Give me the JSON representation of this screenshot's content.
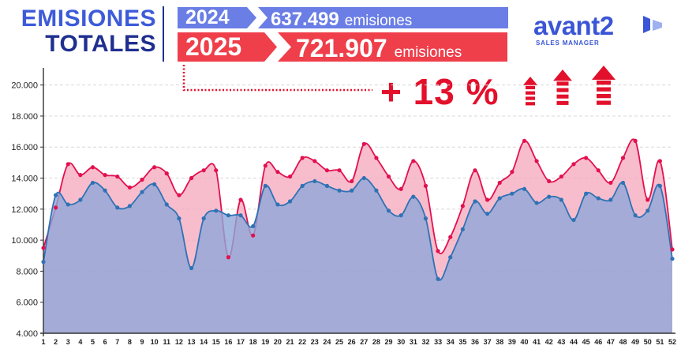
{
  "header": {
    "title_line1": "EMISIONES",
    "title_line2": "TOTALES"
  },
  "banner_2024": {
    "year": "2024",
    "value": "637.499",
    "unit": "emisiones",
    "color": "#6a7ee6"
  },
  "banner_2025": {
    "year": "2025",
    "value": "721.907",
    "unit": "emisiones",
    "color": "#ef3f4b"
  },
  "logo": {
    "word": "avant2",
    "tagline": "SALES MANAGER",
    "color": "#3a55d6"
  },
  "change": {
    "label": "+ 13 %",
    "direction": "up",
    "arrow_icons": [
      "up-arrow-icon",
      "up-arrow-icon",
      "up-arrow-icon"
    ],
    "color": "#e3102b"
  },
  "chart_data": {
    "type": "area",
    "ylim": [
      4000,
      21000
    ],
    "yticks": [
      "4.000",
      "6.000",
      "8.000",
      "10.000",
      "12.000",
      "14.000",
      "16.000",
      "18.000",
      "20.000"
    ],
    "ytick_values": [
      4000,
      6000,
      8000,
      10000,
      12000,
      14000,
      16000,
      18000,
      20000
    ],
    "x": [
      "1",
      "2",
      "3",
      "4",
      "5",
      "6",
      "7",
      "8",
      "9",
      "10",
      "11",
      "12",
      "13",
      "14",
      "15",
      "16",
      "17",
      "18",
      "19",
      "20",
      "21",
      "22",
      "23",
      "24",
      "25",
      "26",
      "27",
      "28",
      "29",
      "30",
      "31",
      "32",
      "33",
      "34",
      "35",
      "36",
      "37",
      "38",
      "39",
      "40",
      "41",
      "42",
      "43",
      "44",
      "45",
      "46",
      "47",
      "48",
      "49",
      "50",
      "51",
      "52"
    ],
    "grid": true,
    "series": [
      {
        "year": "2025",
        "color": "#e3104f",
        "fill": "#f4a7bb",
        "values": [
          9500,
          12100,
          14900,
          14200,
          14700,
          14200,
          14100,
          13400,
          13900,
          14700,
          14300,
          12900,
          14000,
          14500,
          14500,
          8900,
          12600,
          10300,
          14800,
          14400,
          14100,
          15300,
          15100,
          14500,
          14500,
          13800,
          16200,
          15300,
          14100,
          13300,
          15100,
          13500,
          9300,
          10200,
          12200,
          14500,
          12600,
          13700,
          14400,
          16400,
          15100,
          13800,
          14100,
          14900,
          15300,
          14500,
          13700,
          15300,
          16400,
          12600,
          15100,
          9400
        ]
      },
      {
        "year": "2024",
        "color": "#2f72b5",
        "fill": "#8fa6d8",
        "values": [
          8600,
          12900,
          12300,
          12600,
          13700,
          13200,
          12100,
          12200,
          13100,
          13600,
          12300,
          11400,
          8200,
          11400,
          11900,
          11600,
          11600,
          10900,
          13500,
          12300,
          12500,
          13500,
          13800,
          13500,
          13200,
          13200,
          14000,
          13200,
          11900,
          11600,
          12800,
          11400,
          7500,
          8900,
          10700,
          12500,
          11700,
          12700,
          13000,
          13300,
          12400,
          12800,
          12600,
          11300,
          13000,
          12700,
          12600,
          13700,
          11600,
          11900,
          13500,
          8800
        ]
      }
    ]
  }
}
